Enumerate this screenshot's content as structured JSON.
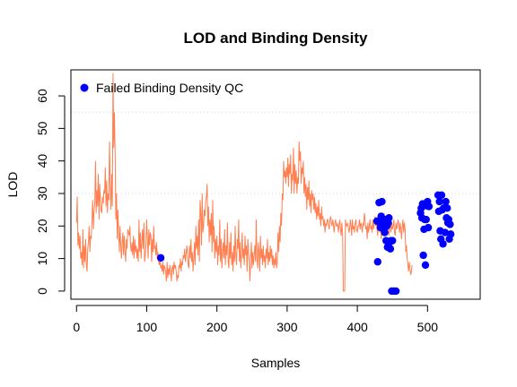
{
  "chart_data": {
    "type": "line",
    "title": "LOD and Binding Density",
    "xlabel": "Samples",
    "ylabel": "LOD",
    "xlim": [
      -8,
      575
    ],
    "ylim": [
      -2.5,
      68
    ],
    "xticks": [
      0,
      100,
      200,
      300,
      400,
      500
    ],
    "yticks": [
      0,
      10,
      20,
      30,
      40,
      50,
      60
    ],
    "hlines": [
      30,
      55
    ],
    "grid": "dotted horizontal lines",
    "colors": {
      "line": "#ff7f50",
      "points": "#0000ff",
      "grid": "#d3d3d3"
    },
    "legend": {
      "position": "top-left",
      "entries": [
        {
          "label": "Failed Binding Density QC",
          "color": "#0000ff",
          "marker": "filled-circle"
        }
      ]
    },
    "series": [
      {
        "type": "line",
        "values": [
          21,
          29,
          14,
          18,
          13,
          17,
          10,
          12,
          8,
          19,
          7,
          14,
          9,
          16,
          8,
          6,
          13,
          15,
          20,
          12,
          17,
          16,
          22,
          28,
          19,
          25,
          27,
          40,
          24,
          31,
          26,
          36,
          22,
          33,
          28,
          25,
          24,
          29,
          27,
          31,
          30,
          38,
          26,
          34,
          24,
          30,
          28,
          46,
          33,
          25,
          36,
          26,
          67,
          44,
          55,
          42,
          22,
          30,
          16,
          25,
          18,
          12,
          20,
          14,
          10,
          15,
          18,
          11,
          17,
          12,
          9,
          16,
          13,
          19,
          18,
          17,
          20,
          14,
          12,
          15,
          11,
          17,
          10,
          16,
          12,
          14,
          10,
          13,
          9,
          22,
          12,
          18,
          10,
          15,
          19,
          13,
          21,
          9,
          11,
          15,
          22,
          16,
          10,
          19,
          14,
          18,
          17,
          9,
          16,
          12,
          20,
          13,
          14,
          11,
          15,
          10,
          12,
          9,
          8,
          10,
          7,
          8,
          6,
          9,
          5,
          8,
          7,
          6,
          3,
          9,
          4,
          7,
          5,
          8,
          6,
          3,
          7,
          8,
          5,
          9,
          7,
          8,
          6,
          3,
          5,
          4,
          8,
          7,
          10,
          6,
          9,
          8,
          11,
          10,
          13,
          9,
          11,
          14,
          12,
          8,
          7,
          14,
          10,
          16,
          9,
          12,
          6,
          10,
          15,
          8,
          20,
          13,
          17,
          11,
          22,
          9,
          28,
          24,
          14,
          30,
          18,
          20,
          25,
          23,
          28,
          29,
          33,
          20,
          26,
          15,
          22,
          17,
          24,
          12,
          28,
          15,
          20,
          10,
          16,
          12,
          17,
          8,
          14,
          11,
          22,
          9,
          16,
          7,
          12,
          15,
          10,
          19,
          8,
          14,
          11,
          21,
          9,
          7,
          15,
          10,
          18,
          8,
          12,
          6,
          14,
          9,
          20,
          11,
          8,
          16,
          13,
          22,
          9,
          15,
          7,
          12,
          18,
          10,
          13,
          8,
          17,
          11,
          14,
          6,
          16,
          12,
          9,
          3,
          10,
          15,
          7,
          12,
          8,
          11,
          14,
          9,
          22,
          10,
          7,
          15,
          12,
          6,
          17,
          10,
          13,
          8,
          14,
          9,
          11,
          7,
          13,
          10,
          16,
          8,
          12,
          9,
          14,
          10,
          13,
          8,
          11,
          7,
          10,
          8,
          12,
          7,
          9,
          18,
          12,
          20,
          15,
          24,
          20,
          30,
          28,
          40,
          35,
          37,
          33,
          38,
          35,
          41,
          32,
          39,
          36,
          42,
          30,
          36,
          34,
          44,
          30,
          39,
          33,
          37,
          30,
          35,
          33,
          46,
          40,
          43,
          33,
          38,
          36,
          40,
          30,
          35,
          29,
          33,
          25,
          32,
          28,
          34,
          26,
          30,
          24,
          31,
          28,
          30,
          25,
          29,
          24,
          27,
          22,
          26,
          23,
          28,
          22,
          24,
          20,
          26,
          22,
          23,
          20,
          22,
          18,
          21,
          20,
          22,
          22,
          20,
          19,
          22,
          23,
          21,
          20,
          22,
          20,
          18,
          21,
          22,
          20,
          20,
          21,
          18,
          20,
          22,
          19,
          17,
          21,
          18,
          0,
          0,
          0,
          22,
          20,
          20,
          21,
          20,
          18,
          19,
          22,
          20,
          17,
          22,
          19,
          20,
          18,
          21,
          22,
          19,
          18,
          20,
          20,
          22,
          19,
          21,
          20,
          18,
          21,
          20,
          24,
          22,
          19,
          20,
          16,
          21,
          18,
          20,
          22,
          19,
          20,
          18,
          22,
          19,
          21,
          23,
          20,
          21,
          19,
          17,
          22,
          20,
          18,
          21,
          16,
          19,
          20,
          22,
          17,
          20,
          18,
          19,
          21,
          20,
          22,
          17,
          20,
          23,
          18,
          21,
          19,
          20,
          22,
          18,
          17,
          21,
          19,
          20,
          22,
          20,
          18,
          21,
          19,
          16,
          20,
          22,
          18,
          21,
          19,
          12,
          14,
          10,
          8,
          6,
          9,
          7,
          5,
          6,
          8
        ]
      },
      {
        "type": "scatter",
        "points": [
          [
            120,
            10.2
          ],
          [
            428,
            21.5
          ],
          [
            429,
            9
          ],
          [
            431,
            27.2
          ],
          [
            432,
            21
          ],
          [
            433,
            19.5
          ],
          [
            434,
            23
          ],
          [
            435,
            27.5
          ],
          [
            436,
            22
          ],
          [
            437,
            21.5
          ],
          [
            438,
            19
          ],
          [
            439,
            18
          ],
          [
            440,
            22
          ],
          [
            441,
            15.5
          ],
          [
            442,
            20
          ],
          [
            443,
            13.5
          ],
          [
            444,
            21
          ],
          [
            445,
            22.5
          ],
          [
            446,
            15
          ],
          [
            447,
            13
          ],
          [
            448,
            15.5
          ],
          [
            449,
            0
          ],
          [
            450,
            15.5
          ],
          [
            452,
            0
          ],
          [
            455,
            0
          ],
          [
            490,
            24
          ],
          [
            491,
            25.5
          ],
          [
            492,
            22.5
          ],
          [
            493,
            26.8
          ],
          [
            494,
            11
          ],
          [
            495,
            19
          ],
          [
            496,
            22
          ],
          [
            497,
            8
          ],
          [
            498,
            22
          ],
          [
            499,
            26.2
          ],
          [
            500,
            27.5
          ],
          [
            501,
            19.5
          ],
          [
            502,
            26
          ],
          [
            515,
            29.5
          ],
          [
            516,
            24.5
          ],
          [
            517,
            27.5
          ],
          [
            518,
            18.5
          ],
          [
            519,
            16
          ],
          [
            520,
            29.5
          ],
          [
            521,
            25
          ],
          [
            522,
            14.5
          ],
          [
            523,
            25.5
          ],
          [
            525,
            18
          ],
          [
            526,
            27.5
          ],
          [
            527,
            22.5
          ],
          [
            528,
            25.5
          ],
          [
            529,
            21
          ],
          [
            530,
            22
          ],
          [
            531,
            16
          ],
          [
            532,
            20.5
          ],
          [
            533,
            17.5
          ]
        ]
      }
    ]
  }
}
